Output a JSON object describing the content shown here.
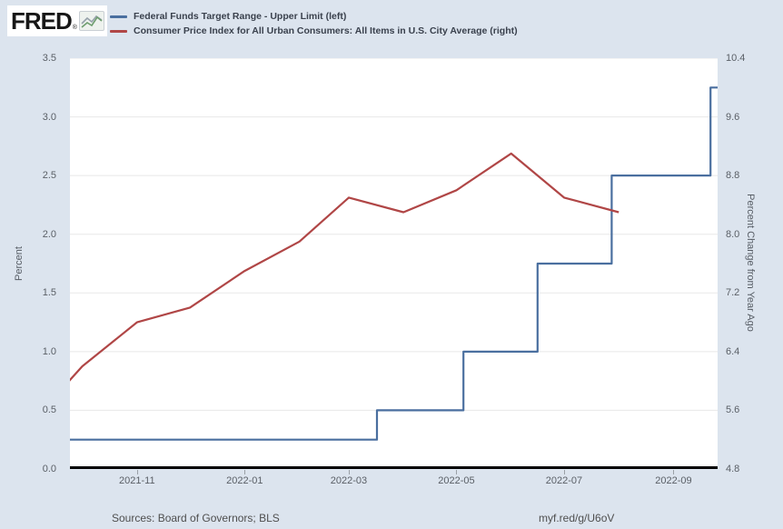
{
  "header": {
    "logo_text": "FRED",
    "logo_reg": "®"
  },
  "colors": {
    "page_background": "#dce4ee",
    "plot_background": "#ffffff",
    "fed_funds_line": "#4a6f9f",
    "cpi_line": "#b04646",
    "gridline": "#e8e8e8"
  },
  "chart_data": {
    "type": "line",
    "title": "",
    "x_range": [
      "2021-09-24",
      "2022-09-26"
    ],
    "x_ticks": [
      {
        "label": "2021-11",
        "date": "2021-11-01"
      },
      {
        "label": "2022-01",
        "date": "2022-01-01"
      },
      {
        "label": "2022-03",
        "date": "2022-03-01"
      },
      {
        "label": "2022-05",
        "date": "2022-05-01"
      },
      {
        "label": "2022-07",
        "date": "2022-07-01"
      },
      {
        "label": "2022-09",
        "date": "2022-09-01"
      }
    ],
    "left_axis": {
      "label": "Percent",
      "min": 0.0,
      "max": 3.5,
      "ticks": [
        "0.0",
        "0.5",
        "1.0",
        "1.5",
        "2.0",
        "2.5",
        "3.0",
        "3.5"
      ]
    },
    "right_axis": {
      "label": "Percent Change from Year Ago",
      "min": 4.8,
      "max": 10.4,
      "ticks": [
        "4.8",
        "5.6",
        "6.4",
        "7.2",
        "8.0",
        "8.8",
        "9.6",
        "10.4"
      ]
    },
    "grid": "horizontal",
    "series": [
      {
        "name": "Federal Funds Target Range - Upper Limit (left)",
        "axis": "left",
        "type": "step",
        "color": "#4a6f9f",
        "points": [
          [
            "2021-09-24",
            0.25
          ],
          [
            "2022-03-17",
            0.5
          ],
          [
            "2022-05-05",
            1.0
          ],
          [
            "2022-06-16",
            1.75
          ],
          [
            "2022-07-28",
            2.5
          ],
          [
            "2022-09-22",
            3.25
          ],
          [
            "2022-09-26",
            3.25
          ]
        ]
      },
      {
        "name": "Consumer Price Index for All Urban Consumers: All Items in U.S. City Average (right)",
        "axis": "right",
        "type": "line",
        "color": "#b04646",
        "points": [
          [
            "2021-09-01",
            5.4
          ],
          [
            "2021-10-01",
            6.2
          ],
          [
            "2021-11-01",
            6.8
          ],
          [
            "2021-12-01",
            7.0
          ],
          [
            "2022-01-01",
            7.5
          ],
          [
            "2022-02-01",
            7.9
          ],
          [
            "2022-03-01",
            8.5
          ],
          [
            "2022-04-01",
            8.3
          ],
          [
            "2022-05-01",
            8.6
          ],
          [
            "2022-06-01",
            9.1
          ],
          [
            "2022-07-01",
            8.5
          ],
          [
            "2022-08-01",
            8.3
          ]
        ]
      }
    ]
  },
  "footer": {
    "sources": "Sources: Board of Governors; BLS",
    "link": "myf.red/g/U6oV"
  }
}
